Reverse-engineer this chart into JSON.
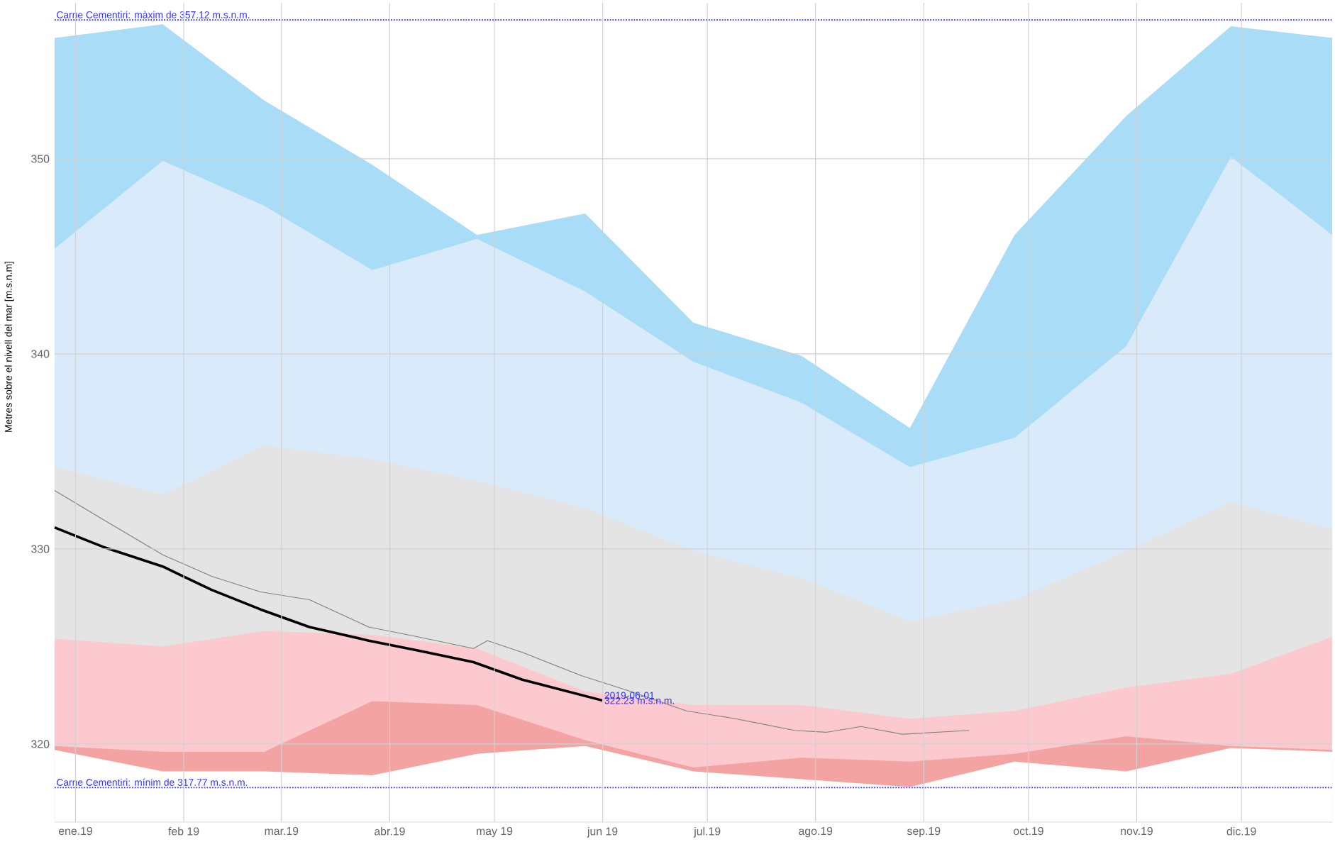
{
  "chart_data": {
    "type": "area",
    "ylabel": "Metres sobre el nivell del mar [m.s.n.m]",
    "x": [
      "2018-12-26",
      "2019-01-26",
      "2019-02-24",
      "2019-03-27",
      "2019-04-26",
      "2019-05-27",
      "2019-06-27",
      "2019-07-28",
      "2019-08-28",
      "2019-09-27",
      "2019-10-29",
      "2019-11-28",
      "2019-12-27"
    ],
    "series": [
      {
        "color": "#a9dcf7",
        "values": [
          356.2,
          356.9,
          353.0,
          349.7,
          346.1,
          347.2,
          341.6,
          339.9,
          336.2,
          346.1,
          352.2,
          356.8,
          356.2
        ]
      },
      {
        "color": "#d9eafb",
        "values": [
          345.4,
          349.9,
          347.6,
          344.3,
          345.9,
          343.2,
          339.6,
          337.5,
          334.2,
          335.7,
          340.4,
          350.1,
          346.1
        ]
      },
      {
        "color": "#e4e4e4",
        "values": [
          334.2,
          332.8,
          335.3,
          334.6,
          333.5,
          332.1,
          329.9,
          328.5,
          326.3,
          327.4,
          329.9,
          332.4,
          331.0
        ]
      },
      {
        "color": "#fcc9cf",
        "values": [
          325.4,
          325.0,
          325.8,
          325.6,
          324.9,
          322.7,
          322.0,
          322.0,
          321.3,
          321.7,
          322.9,
          323.6,
          325.5
        ]
      },
      {
        "color": "#f4a3a3",
        "values": [
          319.9,
          319.6,
          319.6,
          322.2,
          322.0,
          320.2,
          318.8,
          319.3,
          319.1,
          319.5,
          320.4,
          319.9,
          319.7
        ]
      },
      {
        "color": "#ffffff",
        "values": [
          319.7,
          318.6,
          318.6,
          318.4,
          319.5,
          319.9,
          318.6,
          318.2,
          317.8,
          319.1,
          318.6,
          319.8,
          319.6
        ]
      },
      {
        "type": "line",
        "color": "#808080",
        "x": [
          "2018-12-26",
          "2019-01-09",
          "2019-01-26",
          "2019-02-09",
          "2019-02-23",
          "2019-03-09",
          "2019-03-26",
          "2019-04-09",
          "2019-04-25",
          "2019-04-29",
          "2019-05-09",
          "2019-05-26",
          "2019-06-09",
          "2019-06-25",
          "2019-07-09",
          "2019-07-26",
          "2019-08-04",
          "2019-08-14",
          "2019-08-26",
          "2019-09-14"
        ],
        "values": [
          333.0,
          331.5,
          329.7,
          328.6,
          327.8,
          327.4,
          326.0,
          325.5,
          324.9,
          325.3,
          324.7,
          323.5,
          322.7,
          321.7,
          321.3,
          320.7,
          320.6,
          320.9,
          320.5,
          320.7
        ]
      },
      {
        "type": "line",
        "color": "#000000",
        "x": [
          "2018-12-26",
          "2019-01-09",
          "2019-01-26",
          "2019-02-09",
          "2019-02-23",
          "2019-03-09",
          "2019-03-26",
          "2019-04-09",
          "2019-04-25",
          "2019-05-09",
          "2019-06-01"
        ],
        "values": [
          331.1,
          330.1,
          329.1,
          327.9,
          326.9,
          326.0,
          325.3,
          324.8,
          324.2,
          323.3,
          322.23
        ]
      }
    ],
    "ref_lines": [
      {
        "axis": "y",
        "value": 357.12,
        "label": "Carne Cementiri: màxim de 357.12 m.s.n.m.",
        "color": "#3333ff",
        "line_style": "dotted"
      },
      {
        "axis": "y",
        "value": 317.77,
        "label": "Carne Cementiri: mínim de 317.77 m.s.n.m.",
        "color": "#3333ff",
        "line_style": "dotted"
      }
    ],
    "annotations": [
      {
        "text": "2019-06-01",
        "x": "2019-06-01",
        "y": 322.23
      },
      {
        "text": "322.23 m.s.n.m.",
        "x": "2019-06-01",
        "y": 322.23
      }
    ],
    "xlim": [
      "2018-12-26",
      "2019-12-27"
    ],
    "ylim": [
      316,
      358
    ],
    "xticks": [
      {
        "value": "2019-01-01",
        "label": "ene.19"
      },
      {
        "value": "2019-02-01",
        "label": "feb 19"
      },
      {
        "value": "2019-03-01",
        "label": "mar.19"
      },
      {
        "value": "2019-04-01",
        "label": "abr.19"
      },
      {
        "value": "2019-05-01",
        "label": "may 19"
      },
      {
        "value": "2019-06-01",
        "label": "jun 19"
      },
      {
        "value": "2019-07-01",
        "label": "jul.19"
      },
      {
        "value": "2019-08-01",
        "label": "ago.19"
      },
      {
        "value": "2019-09-01",
        "label": "sep.19"
      },
      {
        "value": "2019-10-01",
        "label": "oct.19"
      },
      {
        "value": "2019-11-01",
        "label": "nov.19"
      },
      {
        "value": "2019-12-01",
        "label": "dic.19"
      }
    ],
    "yticks": [
      320,
      330,
      340,
      350
    ],
    "grid": true
  }
}
